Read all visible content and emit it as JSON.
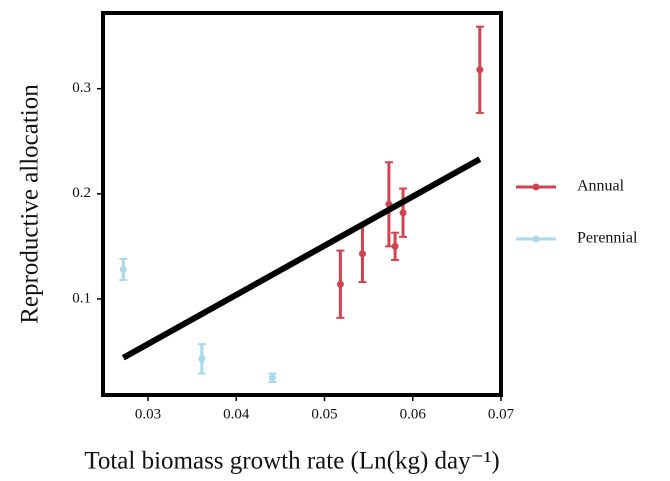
{
  "chart_data": {
    "type": "scatter",
    "x_label": "Total biomass growth rate (Ln(kg) day⁻¹)",
    "y_label": "Reproductive allocation",
    "xlim": [
      0.0249,
      0.07
    ],
    "ylim": [
      0.0086,
      0.372
    ],
    "xticks": [
      0.03,
      0.04,
      0.05,
      0.06,
      0.07
    ],
    "yticks": [
      0.1,
      0.2,
      0.3
    ],
    "grid": false,
    "legend": "right",
    "series": [
      {
        "name": "Annual",
        "color": "#d1434f",
        "x": [
          0.0676,
          0.0589,
          0.058,
          0.0573,
          0.0543,
          0.0518
        ],
        "values": [
          0.318,
          0.182,
          0.15,
          0.19,
          0.143,
          0.114
        ],
        "errors": [
          0.041,
          0.023,
          0.013,
          0.04,
          0.027,
          0.032
        ]
      },
      {
        "name": "Perennial",
        "color": "#a8d8ea",
        "x": [
          0.0272,
          0.0361,
          0.0441
        ],
        "values": [
          0.128,
          0.043,
          0.025
        ],
        "errors": [
          0.01,
          0.014,
          0.004
        ]
      }
    ],
    "fit": {
      "color": "#000000",
      "x": [
        0.0272,
        0.0676
      ],
      "values": [
        0.044,
        0.233
      ]
    }
  }
}
